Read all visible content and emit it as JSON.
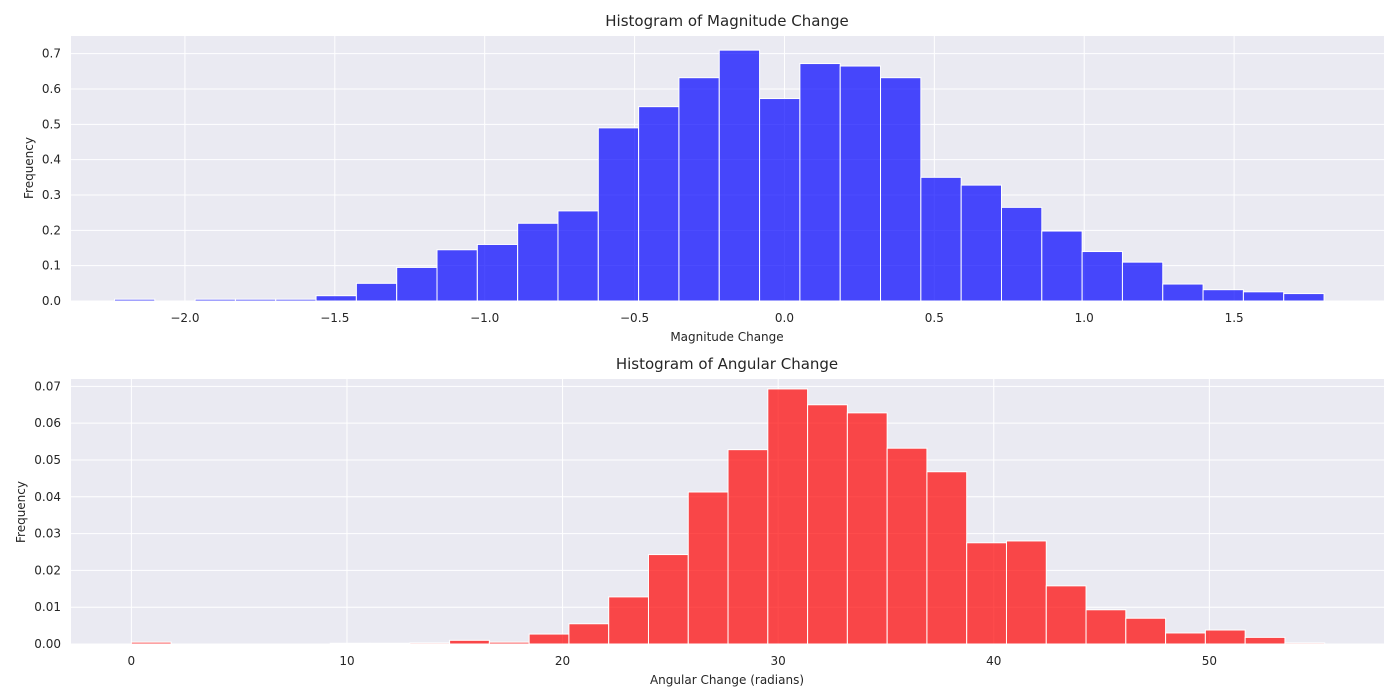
{
  "chart_data": [
    {
      "type": "bar",
      "title": "Histogram of Magnitude Change",
      "xlabel": "Magnitude Change",
      "ylabel": "Frequency",
      "xlim": [
        -2.38,
        2.0
      ],
      "ylim": [
        0,
        0.75
      ],
      "xticks": [
        -2.0,
        -1.5,
        -1.0,
        -0.5,
        0.0,
        0.5,
        1.0,
        1.5
      ],
      "xtick_labels": [
        "−2.0",
        "−1.5",
        "−1.0",
        "−0.5",
        "0.0",
        "0.5",
        "1.0",
        "1.5"
      ],
      "yticks": [
        0,
        0.1,
        0.2,
        0.3,
        0.4,
        0.5,
        0.6,
        0.7
      ],
      "ytick_labels": [
        "0.0",
        "0.1",
        "0.2",
        "0.3",
        "0.4",
        "0.5",
        "0.6",
        "0.7"
      ],
      "bin_start": -2.235,
      "bin_width": 0.1345,
      "values": [
        0.005,
        0.0,
        0.005,
        0.005,
        0.005,
        0.015,
        0.05,
        0.095,
        0.145,
        0.16,
        0.22,
        0.255,
        0.49,
        0.55,
        0.632,
        0.71,
        0.573,
        0.672,
        0.665,
        0.632,
        0.35,
        0.328,
        0.265,
        0.198,
        0.14,
        0.11,
        0.048,
        0.032,
        0.026,
        0.021
      ],
      "color": "#0000ff",
      "alpha": 0.7,
      "grid": true,
      "background": "#eaeaf2"
    },
    {
      "type": "bar",
      "title": "Histogram of Angular Change",
      "xlabel": "Angular Change (radians)",
      "ylabel": "Frequency",
      "xlim": [
        -2.8,
        58.1
      ],
      "ylim": [
        0,
        0.072
      ],
      "xticks": [
        0,
        10,
        20,
        30,
        40,
        50
      ],
      "xtick_labels": [
        "0",
        "10",
        "20",
        "30",
        "40",
        "50"
      ],
      "yticks": [
        0,
        0.01,
        0.02,
        0.03,
        0.04,
        0.05,
        0.06,
        0.07
      ],
      "ytick_labels": [
        "0.00",
        "0.01",
        "0.02",
        "0.03",
        "0.04",
        "0.05",
        "0.06",
        "0.07"
      ],
      "bin_start": 0.0,
      "bin_width": 1.845,
      "values": [
        0.0005,
        0.0,
        0.0,
        0.0,
        0.0,
        0.0002,
        0.0002,
        0.0003,
        0.001,
        0.0005,
        0.0027,
        0.0055,
        0.0128,
        0.0243,
        0.0413,
        0.0528,
        0.0693,
        0.065,
        0.0628,
        0.0532,
        0.0468,
        0.0275,
        0.028,
        0.0158,
        0.0093,
        0.007,
        0.003,
        0.0038,
        0.0018,
        0.0003
      ],
      "color": "#ff0000",
      "alpha": 0.7,
      "grid": true,
      "background": "#eaeaf2"
    }
  ]
}
